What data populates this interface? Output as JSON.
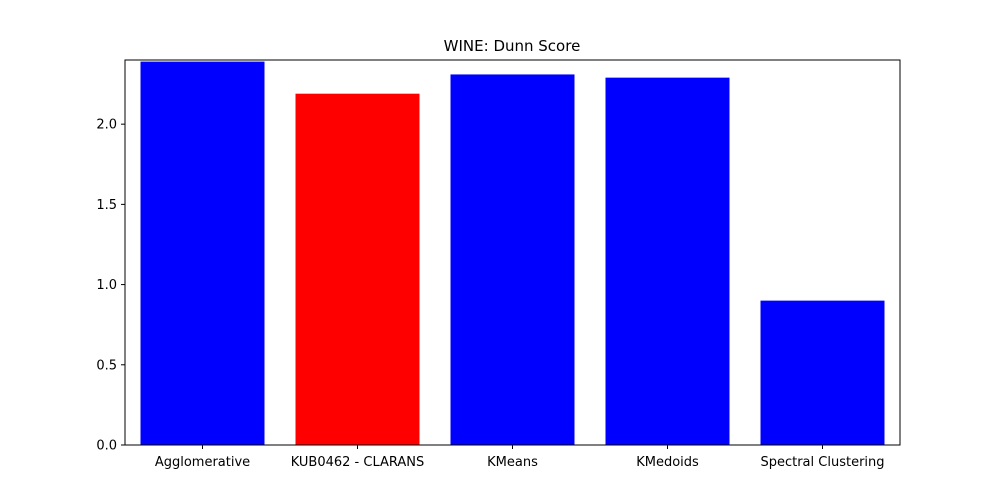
{
  "chart_data": {
    "type": "bar",
    "title": "WINE: Dunn Score",
    "xlabel": "",
    "ylabel": "",
    "categories": [
      "Agglomerative",
      "KUB0462 - CLARANS",
      "KMeans",
      "KMedoids",
      "Spectral Clustering"
    ],
    "values": [
      2.39,
      2.19,
      2.31,
      2.29,
      0.9
    ],
    "bar_colors": [
      "#0000ff",
      "#ff0000",
      "#0000ff",
      "#0000ff",
      "#0000ff"
    ],
    "ylim": [
      0,
      2.4
    ],
    "yticks": [
      0.0,
      0.5,
      1.0,
      1.5,
      2.0
    ],
    "ytick_labels": [
      "0.0",
      "0.5",
      "1.0",
      "1.5",
      "2.0"
    ],
    "grid": false,
    "legend": "none"
  }
}
